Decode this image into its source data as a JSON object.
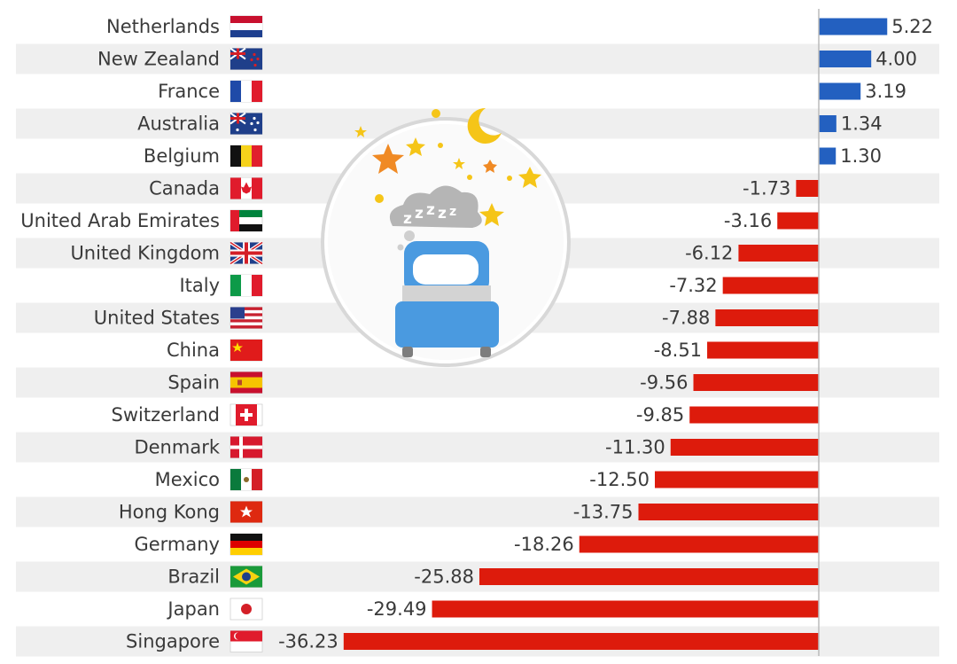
{
  "chart_data": {
    "type": "bar",
    "orientation": "horizontal",
    "title": "",
    "xlabel": "",
    "ylabel": "",
    "xlim": [
      -36.23,
      5.22
    ],
    "grid": false,
    "legend": "none",
    "colors": {
      "positive": "#2360c0",
      "negative": "#dd1b0c",
      "row_band": "#efefef",
      "axis": "#bbbbbb"
    },
    "illustration": "sleeping-bed-icon",
    "categories": [
      "Netherlands",
      "New Zealand",
      "France",
      "Australia",
      "Belgium",
      "Canada",
      "United Arab Emirates",
      "United Kingdom",
      "Italy",
      "United States",
      "China",
      "Spain",
      "Switzerland",
      "Denmark",
      "Mexico",
      "Hong Kong",
      "Germany",
      "Brazil",
      "Japan",
      "Singapore"
    ],
    "flags": [
      "netherlands-flag-icon",
      "new-zealand-flag-icon",
      "france-flag-icon",
      "australia-flag-icon",
      "belgium-flag-icon",
      "canada-flag-icon",
      "uae-flag-icon",
      "uk-flag-icon",
      "italy-flag-icon",
      "usa-flag-icon",
      "china-flag-icon",
      "spain-flag-icon",
      "switzerland-flag-icon",
      "denmark-flag-icon",
      "mexico-flag-icon",
      "hong-kong-flag-icon",
      "germany-flag-icon",
      "brazil-flag-icon",
      "japan-flag-icon",
      "singapore-flag-icon"
    ],
    "values": [
      5.22,
      4.0,
      3.19,
      1.34,
      1.3,
      -1.73,
      -3.16,
      -6.12,
      -7.32,
      -7.88,
      -8.51,
      -9.56,
      -9.85,
      -11.3,
      -12.5,
      -13.75,
      -18.26,
      -25.88,
      -29.49,
      -36.23
    ],
    "labels": [
      "5.22",
      "4.00",
      "3.19",
      "1.34",
      "1.30",
      "-1.73",
      "-3.16",
      "-6.12",
      "-7.32",
      "-7.88",
      "-8.51",
      "-9.56",
      "-9.85",
      "-11.30",
      "-12.50",
      "-13.75",
      "-18.26",
      "-25.88",
      "-29.49",
      "-36.23"
    ]
  }
}
